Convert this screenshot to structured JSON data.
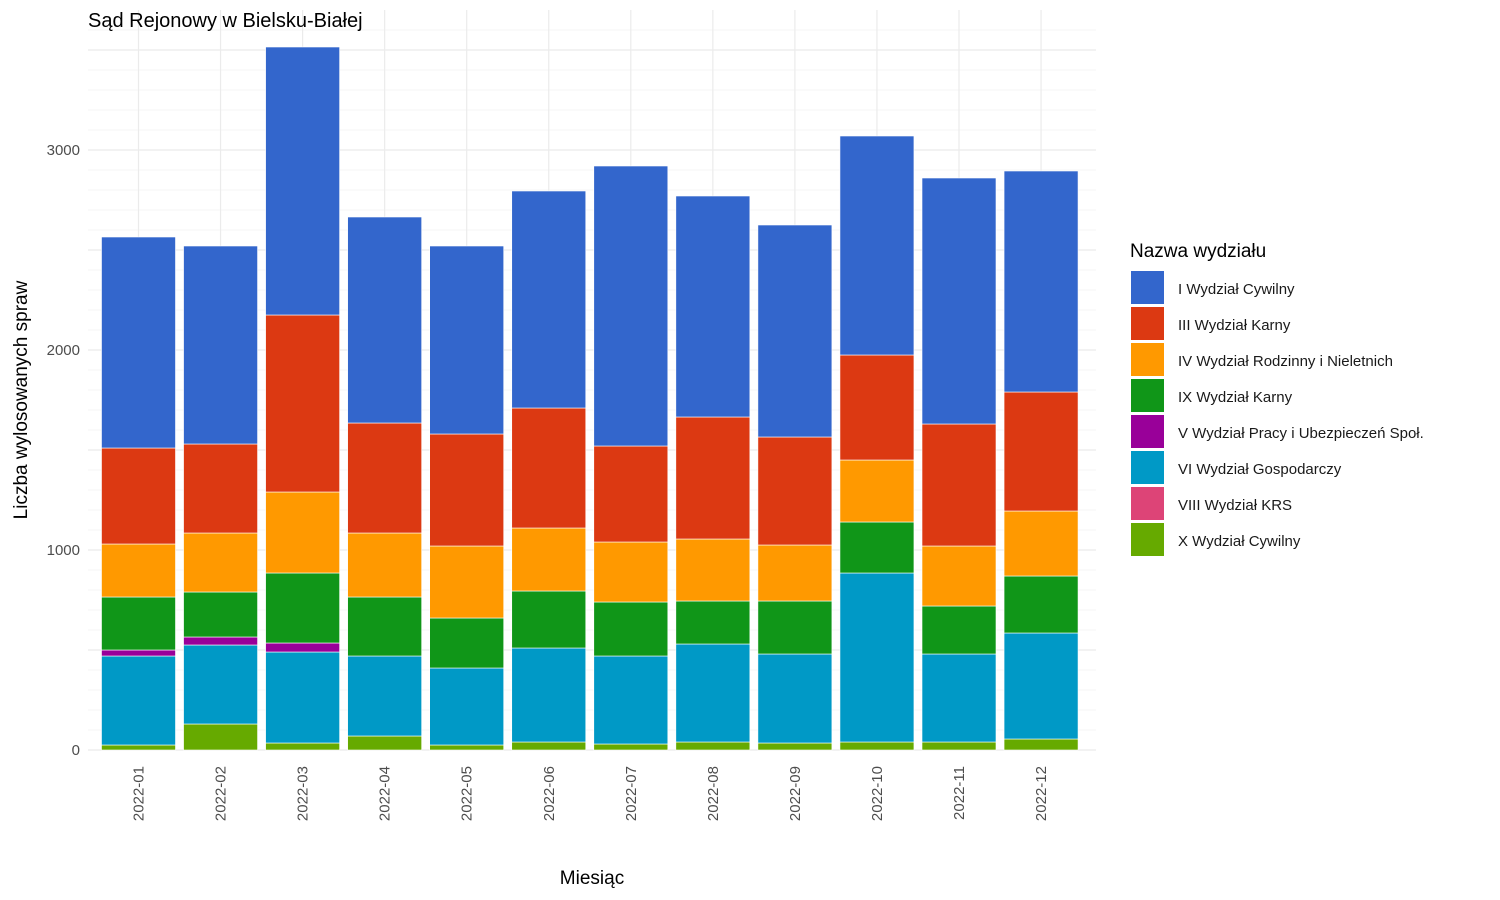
{
  "chart_data": {
    "type": "bar",
    "stacked": true,
    "title": "Sąd Rejonowy w Bielsku-Białej",
    "xlabel": "Miesiąc",
    "ylabel": "Liczba wylosowanych spraw",
    "ylim": [
      0,
      3600
    ],
    "yticks": [
      0,
      1000,
      2000,
      3000
    ],
    "grid": true,
    "legend_title": "Nazwa wydziału",
    "legend_position": "right",
    "categories": [
      "2022-01",
      "2022-02",
      "2022-03",
      "2022-04",
      "2022-05",
      "2022-06",
      "2022-07",
      "2022-08",
      "2022-09",
      "2022-10",
      "2022-11",
      "2022-12"
    ],
    "series": [
      {
        "name": "X Wydział Cywilny",
        "color": "#66aa00",
        "values": [
          25,
          130,
          35,
          70,
          25,
          40,
          30,
          40,
          35,
          40,
          40,
          55
        ]
      },
      {
        "name": "VIII Wydział KRS",
        "color": "#dd4477",
        "values": [
          0,
          0,
          0,
          0,
          0,
          0,
          0,
          0,
          0,
          0,
          0,
          0
        ]
      },
      {
        "name": "VI Wydział Gospodarczy",
        "color": "#0099c6",
        "values": [
          445,
          395,
          455,
          400,
          385,
          470,
          440,
          490,
          445,
          845,
          440,
          530
        ]
      },
      {
        "name": "V Wydział Pracy i Ubezpieczeń Społ.",
        "color": "#990099",
        "values": [
          30,
          40,
          45,
          0,
          0,
          0,
          0,
          0,
          0,
          0,
          0,
          0
        ]
      },
      {
        "name": "IX Wydział Karny",
        "color": "#109618",
        "values": [
          265,
          225,
          350,
          295,
          250,
          285,
          270,
          215,
          265,
          255,
          240,
          285
        ]
      },
      {
        "name": "IV Wydział Rodzinny i Nieletnich",
        "color": "#ff9900",
        "values": [
          265,
          295,
          405,
          320,
          360,
          315,
          300,
          310,
          280,
          310,
          300,
          325
        ]
      },
      {
        "name": "III Wydział Karny",
        "color": "#dc3912",
        "values": [
          480,
          445,
          885,
          550,
          560,
          600,
          480,
          610,
          540,
          525,
          610,
          595
        ]
      },
      {
        "name": "I Wydział Cywilny",
        "color": "#3366cc",
        "values": [
          1055,
          990,
          1340,
          1030,
          940,
          1085,
          1400,
          1105,
          1060,
          1095,
          1230,
          1105
        ]
      }
    ],
    "legend_order": [
      "I Wydział Cywilny",
      "III Wydział Karny",
      "IV Wydział Rodzinny i Nieletnich",
      "IX Wydział Karny",
      "V Wydział Pracy i Ubezpieczeń Społ.",
      "VI Wydział Gospodarczy",
      "VIII Wydział KRS",
      "X Wydział Cywilny"
    ]
  }
}
